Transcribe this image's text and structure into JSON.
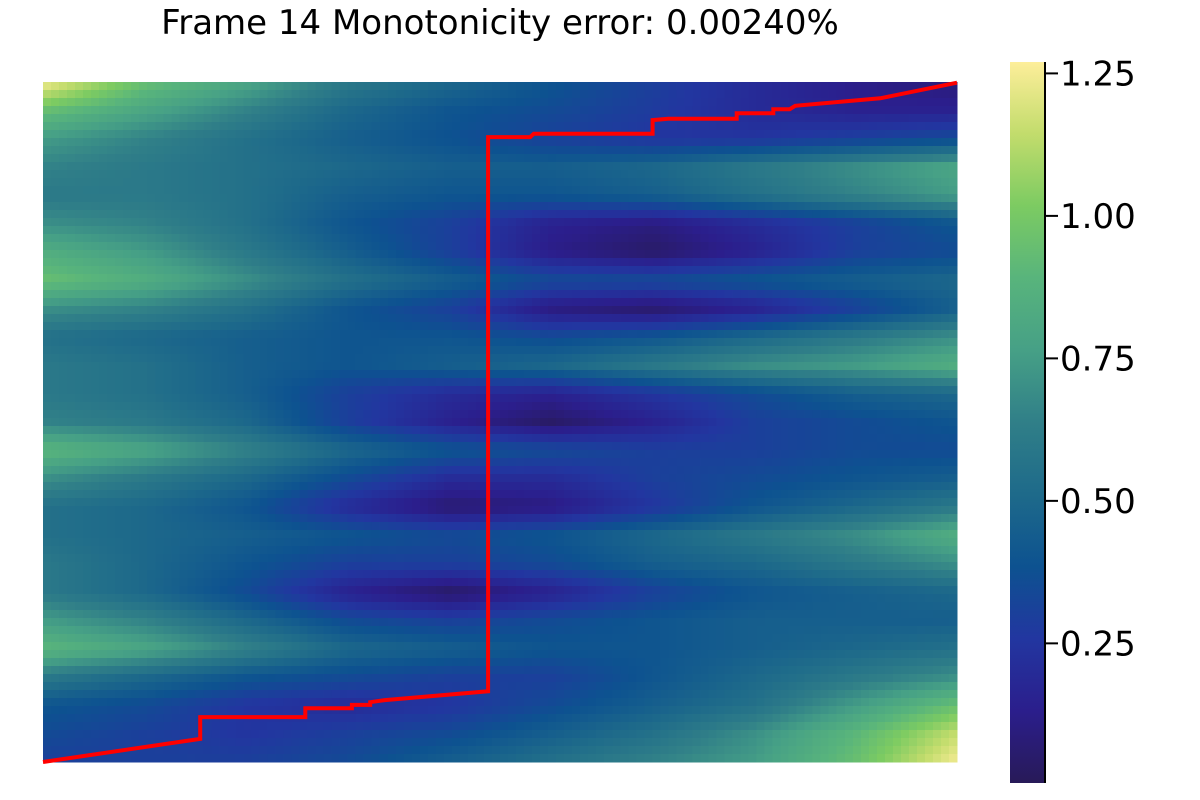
{
  "chart_data": {
    "type": "heatmap",
    "title": "Frame 14   Monotonicity error: 0.00240%",
    "xlabel": "",
    "ylabel": "",
    "axes_visible": false,
    "grid": false,
    "xlim": [
      0,
      1
    ],
    "ylim": [
      0,
      1
    ],
    "colorbar": {
      "position": "right",
      "range": [
        0.005,
        1.27
      ],
      "ticks": [
        0.25,
        0.5,
        0.75,
        1.0,
        1.25
      ],
      "tick_labels": [
        "0.25",
        "0.50",
        "0.75",
        "1.00",
        "1.25"
      ],
      "colormap": [
        "#281a58",
        "#2b1e8c",
        "#2236a0",
        "#0d5290",
        "#1e6a8a",
        "#307f88",
        "#46a086",
        "#58b47c",
        "#7ccb62",
        "#c2dc6c",
        "#fdee9a"
      ]
    },
    "z_rows_top_to_bottom": [
      [
        1.25,
        0.95,
        0.8,
        0.6,
        0.5,
        0.4,
        0.3,
        0.2,
        0.12,
        0.08
      ],
      [
        0.95,
        0.8,
        0.65,
        0.5,
        0.4,
        0.35,
        0.28,
        0.2,
        0.15,
        0.15
      ],
      [
        0.75,
        0.65,
        0.55,
        0.45,
        0.38,
        0.3,
        0.25,
        0.25,
        0.3,
        0.35
      ],
      [
        0.65,
        0.6,
        0.55,
        0.5,
        0.45,
        0.45,
        0.5,
        0.6,
        0.7,
        0.8
      ],
      [
        0.6,
        0.6,
        0.55,
        0.45,
        0.4,
        0.4,
        0.45,
        0.55,
        0.65,
        0.75
      ],
      [
        0.7,
        0.65,
        0.55,
        0.4,
        0.3,
        0.15,
        0.1,
        0.2,
        0.3,
        0.4
      ],
      [
        0.85,
        0.75,
        0.6,
        0.45,
        0.3,
        0.12,
        0.04,
        0.15,
        0.3,
        0.35
      ],
      [
        0.95,
        0.85,
        0.7,
        0.55,
        0.45,
        0.35,
        0.35,
        0.4,
        0.45,
        0.5
      ],
      [
        0.7,
        0.65,
        0.55,
        0.4,
        0.3,
        0.1,
        0.05,
        0.15,
        0.3,
        0.45
      ],
      [
        0.55,
        0.5,
        0.45,
        0.4,
        0.4,
        0.35,
        0.4,
        0.5,
        0.6,
        0.7
      ],
      [
        0.6,
        0.55,
        0.45,
        0.4,
        0.45,
        0.5,
        0.6,
        0.7,
        0.75,
        0.85
      ],
      [
        0.6,
        0.55,
        0.45,
        0.3,
        0.2,
        0.15,
        0.25,
        0.35,
        0.45,
        0.5
      ],
      [
        0.65,
        0.6,
        0.5,
        0.3,
        0.15,
        0.04,
        0.15,
        0.3,
        0.35,
        0.4
      ],
      [
        0.9,
        0.8,
        0.65,
        0.5,
        0.4,
        0.35,
        0.3,
        0.3,
        0.35,
        0.35
      ],
      [
        0.7,
        0.6,
        0.5,
        0.35,
        0.2,
        0.2,
        0.3,
        0.35,
        0.4,
        0.45
      ],
      [
        0.55,
        0.5,
        0.4,
        0.2,
        0.06,
        0.1,
        0.25,
        0.4,
        0.5,
        0.6
      ],
      [
        0.55,
        0.5,
        0.45,
        0.4,
        0.35,
        0.4,
        0.5,
        0.6,
        0.7,
        0.85
      ],
      [
        0.6,
        0.5,
        0.4,
        0.3,
        0.3,
        0.35,
        0.45,
        0.5,
        0.6,
        0.7
      ],
      [
        0.6,
        0.5,
        0.35,
        0.15,
        0.04,
        0.15,
        0.3,
        0.4,
        0.45,
        0.5
      ],
      [
        0.75,
        0.65,
        0.5,
        0.35,
        0.3,
        0.35,
        0.4,
        0.45,
        0.45,
        0.45
      ],
      [
        0.9,
        0.8,
        0.65,
        0.5,
        0.45,
        0.4,
        0.4,
        0.45,
        0.5,
        0.55
      ],
      [
        0.6,
        0.5,
        0.4,
        0.35,
        0.3,
        0.3,
        0.4,
        0.5,
        0.6,
        0.7
      ],
      [
        0.4,
        0.35,
        0.25,
        0.2,
        0.25,
        0.35,
        0.45,
        0.55,
        0.75,
        0.95
      ],
      [
        0.35,
        0.3,
        0.25,
        0.3,
        0.35,
        0.45,
        0.55,
        0.7,
        0.9,
        1.15
      ],
      [
        0.3,
        0.3,
        0.3,
        0.35,
        0.45,
        0.55,
        0.65,
        0.75,
        0.95,
        1.25
      ]
    ],
    "path": {
      "color": "#ff0000",
      "points": [
        [
          0,
          0
        ],
        [
          0.172,
          0.034
        ],
        [
          0.172,
          0.066
        ],
        [
          0.287,
          0.066
        ],
        [
          0.287,
          0.079
        ],
        [
          0.338,
          0.079
        ],
        [
          0.338,
          0.084
        ],
        [
          0.358,
          0.084
        ],
        [
          0.358,
          0.088
        ],
        [
          0.374,
          0.091
        ],
        [
          0.487,
          0.104
        ],
        [
          0.487,
          0.919
        ],
        [
          0.533,
          0.919
        ],
        [
          0.537,
          0.924
        ],
        [
          0.667,
          0.924
        ],
        [
          0.667,
          0.944
        ],
        [
          0.684,
          0.946
        ],
        [
          0.759,
          0.946
        ],
        [
          0.759,
          0.954
        ],
        [
          0.799,
          0.954
        ],
        [
          0.799,
          0.96
        ],
        [
          0.817,
          0.96
        ],
        [
          0.823,
          0.965
        ],
        [
          0.916,
          0.976
        ],
        [
          1,
          0.999
        ]
      ]
    }
  }
}
